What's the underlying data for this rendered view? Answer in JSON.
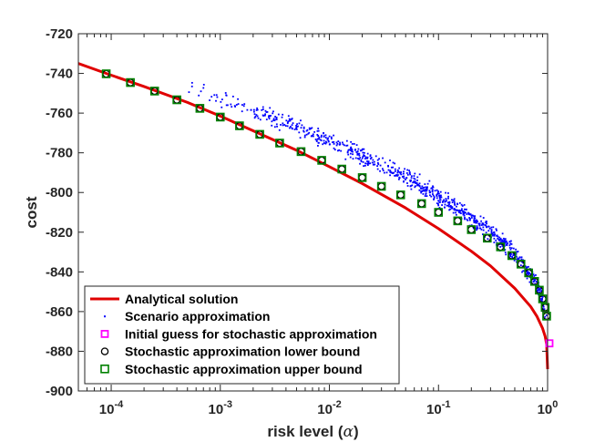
{
  "chart_data": {
    "type": "line",
    "xscale": "log",
    "xlabel": "risk level (α)",
    "xlabel_main": "risk level (",
    "xlabel_symbol": "α",
    "xlabel_close": ")",
    "ylabel": "cost",
    "xlim": [
      5e-05,
      1
    ],
    "ylim": [
      -900,
      -720
    ],
    "grid": false,
    "legend_position": "bottom-left",
    "x_ticks": [
      {
        "value": 0.0001,
        "base": "10",
        "exp": "-4"
      },
      {
        "value": 0.001,
        "base": "10",
        "exp": "-3"
      },
      {
        "value": 0.01,
        "base": "10",
        "exp": "-2"
      },
      {
        "value": 0.1,
        "base": "10",
        "exp": "-1"
      },
      {
        "value": 1,
        "base": "10",
        "exp": "0"
      }
    ],
    "y_ticks": [
      -720,
      -740,
      -760,
      -780,
      -800,
      -820,
      -840,
      -860,
      -880,
      -900
    ],
    "colors": {
      "analytical": "#e00000",
      "scenario": "#0000ff",
      "initial_guess": "#ff00ff",
      "lower_bound": "#000000",
      "upper_bound": "#008000"
    },
    "series": [
      {
        "name": "Analytical solution",
        "kind": "line",
        "x": [
          5e-05,
          0.0001,
          0.0002,
          0.0005,
          0.001,
          0.002,
          0.005,
          0.01,
          0.02,
          0.05,
          0.1,
          0.2,
          0.3,
          0.5,
          0.7,
          0.8,
          0.9,
          0.95,
          0.98,
          1.0
        ],
        "y": [
          -735,
          -740.9,
          -746.6,
          -754.6,
          -761.5,
          -768.9,
          -778.7,
          -787.0,
          -795.5,
          -807.8,
          -818.2,
          -829.6,
          -837.0,
          -848.3,
          -857.5,
          -862.5,
          -868.5,
          -872.5,
          -876.5,
          -889
        ]
      },
      {
        "name": "Scenario approximation",
        "kind": "scatter",
        "x_range": [
          0.0004,
          1
        ],
        "center_points": [
          [
            0.0004,
            -746
          ],
          [
            0.0007,
            -749
          ],
          [
            0.001,
            -752.5
          ],
          [
            0.002,
            -759
          ],
          [
            0.005,
            -767
          ],
          [
            0.01,
            -774.5
          ],
          [
            0.02,
            -782
          ],
          [
            0.05,
            -792
          ],
          [
            0.1,
            -802
          ],
          [
            0.2,
            -813
          ],
          [
            0.3,
            -820
          ],
          [
            0.5,
            -831
          ],
          [
            0.7,
            -841
          ],
          [
            0.85,
            -850
          ],
          [
            0.95,
            -861
          ],
          [
            1.0,
            -868
          ]
        ],
        "spread": 3,
        "count": 850
      },
      {
        "name": "Initial guess for stochastic approximation",
        "kind": "marker",
        "marker": "square",
        "points": [
          [
            1.0,
            -876
          ]
        ]
      },
      {
        "name": "Stochastic approximation lower bound",
        "kind": "marker",
        "marker": "circle",
        "x": [
          9e-05,
          0.00015,
          0.00025,
          0.0004,
          0.00065,
          0.001,
          0.0015,
          0.0023,
          0.0035,
          0.0055,
          0.0085,
          0.013,
          0.02,
          0.03,
          0.045,
          0.07,
          0.1,
          0.15,
          0.2,
          0.28,
          0.37,
          0.47,
          0.57,
          0.67,
          0.76,
          0.84,
          0.9,
          0.95,
          0.98
        ],
        "y": [
          -740.2,
          -744.6,
          -748.9,
          -753.3,
          -757.6,
          -762.0,
          -766.4,
          -770.7,
          -775.1,
          -779.4,
          -783.8,
          -788.2,
          -792.5,
          -796.9,
          -801.2,
          -805.6,
          -810.0,
          -814.3,
          -818.7,
          -823.0,
          -827.4,
          -831.8,
          -836.1,
          -840.5,
          -844.8,
          -849.2,
          -853.6,
          -857.9,
          -862.3
        ]
      },
      {
        "name": "Stochastic approximation upper bound",
        "kind": "marker",
        "marker": "square",
        "x": [
          9e-05,
          0.00015,
          0.00025,
          0.0004,
          0.00065,
          0.001,
          0.0015,
          0.0023,
          0.0035,
          0.0055,
          0.0085,
          0.013,
          0.02,
          0.03,
          0.045,
          0.07,
          0.1,
          0.15,
          0.2,
          0.28,
          0.37,
          0.47,
          0.57,
          0.67,
          0.76,
          0.84,
          0.9,
          0.95,
          0.98
        ],
        "y": [
          -740.2,
          -744.6,
          -748.9,
          -753.3,
          -757.6,
          -762.0,
          -766.4,
          -770.7,
          -775.1,
          -779.4,
          -783.8,
          -788.2,
          -792.5,
          -796.9,
          -801.2,
          -805.6,
          -810.0,
          -814.3,
          -818.7,
          -823.0,
          -827.4,
          -831.8,
          -836.1,
          -840.5,
          -844.8,
          -849.2,
          -853.6,
          -857.9,
          -862.3
        ]
      }
    ],
    "legend": [
      "Analytical solution",
      "Scenario approximation",
      "Initial guess for stochastic approximation",
      "Stochastic approximation lower bound",
      "Stochastic approximation upper bound"
    ]
  }
}
